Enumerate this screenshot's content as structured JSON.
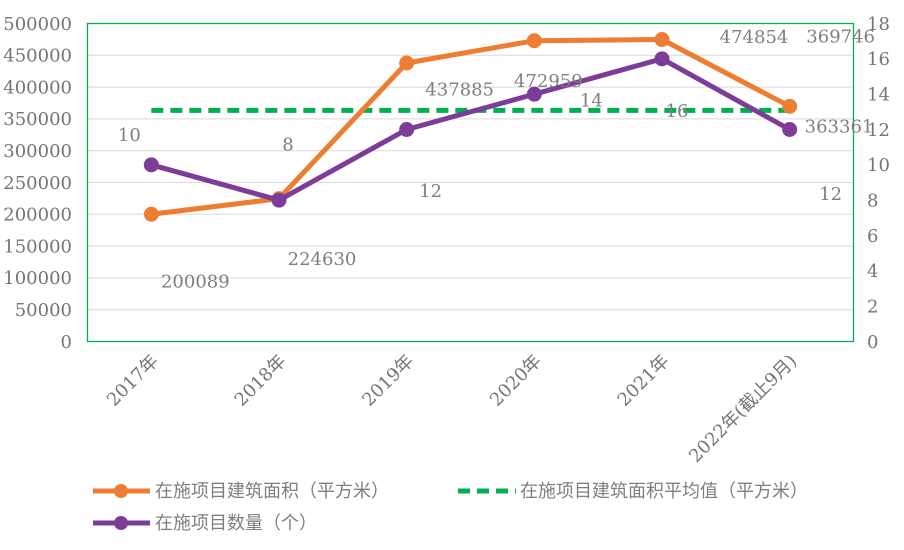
{
  "chart_data": {
    "type": "line",
    "title": "",
    "categories": [
      "2017年",
      "2018年",
      "2019年",
      "2020年",
      "2021年",
      "2022年(截止9月)"
    ],
    "series": [
      {
        "name": "在施项目建筑面积（平方米）",
        "axis": "left",
        "color": "#ED7D31",
        "values": [
          200089,
          224630,
          437885,
          472959,
          474854,
          369746
        ],
        "label_offsets": [
          [
            44,
            67
          ],
          [
            43,
            60
          ],
          [
            53,
            26
          ],
          [
            14,
            40
          ],
          [
            92,
            -3
          ],
          [
            51,
            -70
          ]
        ]
      },
      {
        "name": "在施项目数量（个）",
        "axis": "right",
        "color": "#7D3C98",
        "values": [
          10,
          8,
          12,
          14,
          16,
          12
        ],
        "label_offsets": [
          [
            -22,
            -30
          ],
          [
            9,
            -56
          ],
          [
            24,
            61
          ],
          [
            57,
            6
          ],
          [
            15,
            52
          ],
          [
            41,
            64
          ]
        ]
      }
    ],
    "average_line": {
      "name": "在施项目建筑面积平均值（平方米）",
      "color": "#00B050",
      "value": 363361,
      "label_pos": [
        839,
        126
      ]
    },
    "left_axis": {
      "min": 0,
      "max": 500000,
      "step": 50000
    },
    "right_axis": {
      "min": 0,
      "max": 18,
      "step": 2
    },
    "grid": true,
    "gridline_color": "#D9D9D9",
    "border_color": "#00B050",
    "text_color": "#757575",
    "legend_position": "bottom"
  },
  "legend": {
    "area_label": "在施项目建筑面积（平方米）",
    "average_label": "在施项目建筑面积平均值（平方米）",
    "count_label": "在施项目数量（个）"
  }
}
